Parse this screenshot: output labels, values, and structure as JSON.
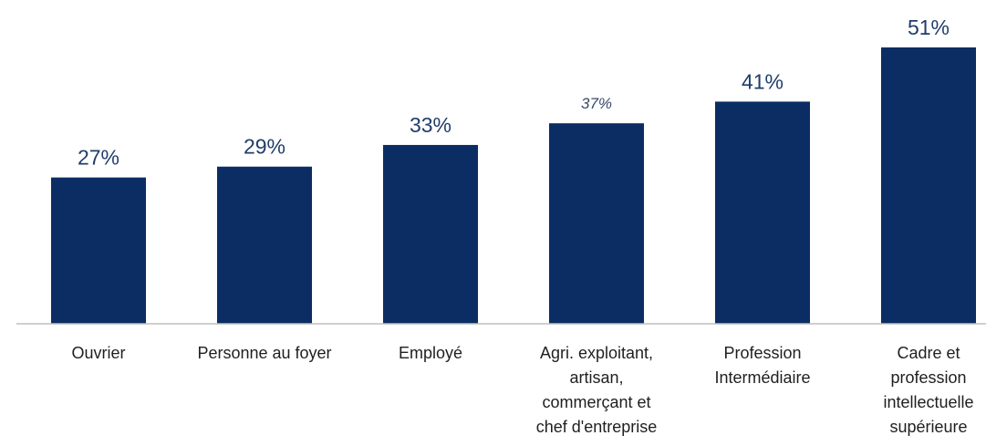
{
  "colors": {
    "bar": "#0b2d63",
    "value_text": "#203d6b",
    "category_text": "#1f1f1f",
    "axis": "#bfbfbf"
  },
  "chart_data": {
    "type": "bar",
    "title": "",
    "xlabel": "",
    "ylabel": "",
    "ylim": [
      0,
      51
    ],
    "grid": false,
    "categories": [
      "Ouvrier",
      "Personne au foyer",
      "Employé",
      "Agri. exploitant, artisan, commerçant et chef d'entreprise",
      "Profession Intermédiaire",
      "Cadre et profession intellectuelle supérieure"
    ],
    "category_label_lines": [
      [
        "Ouvrier"
      ],
      [
        "Personne au foyer"
      ],
      [
        "Employé"
      ],
      [
        "Agri. exploitant,",
        "artisan,",
        "commerçant et",
        "chef d'entreprise"
      ],
      [
        "Profession",
        "Intermédiaire"
      ],
      [
        "Cadre et",
        "profession",
        "intellectuelle",
        "supérieure"
      ]
    ],
    "values": [
      27,
      29,
      33,
      37,
      41,
      51
    ],
    "value_labels": [
      "27%",
      "29%",
      "33%",
      "37%",
      "41%",
      "51%"
    ],
    "value_label_italic": [
      false,
      false,
      false,
      true,
      false,
      false
    ]
  }
}
